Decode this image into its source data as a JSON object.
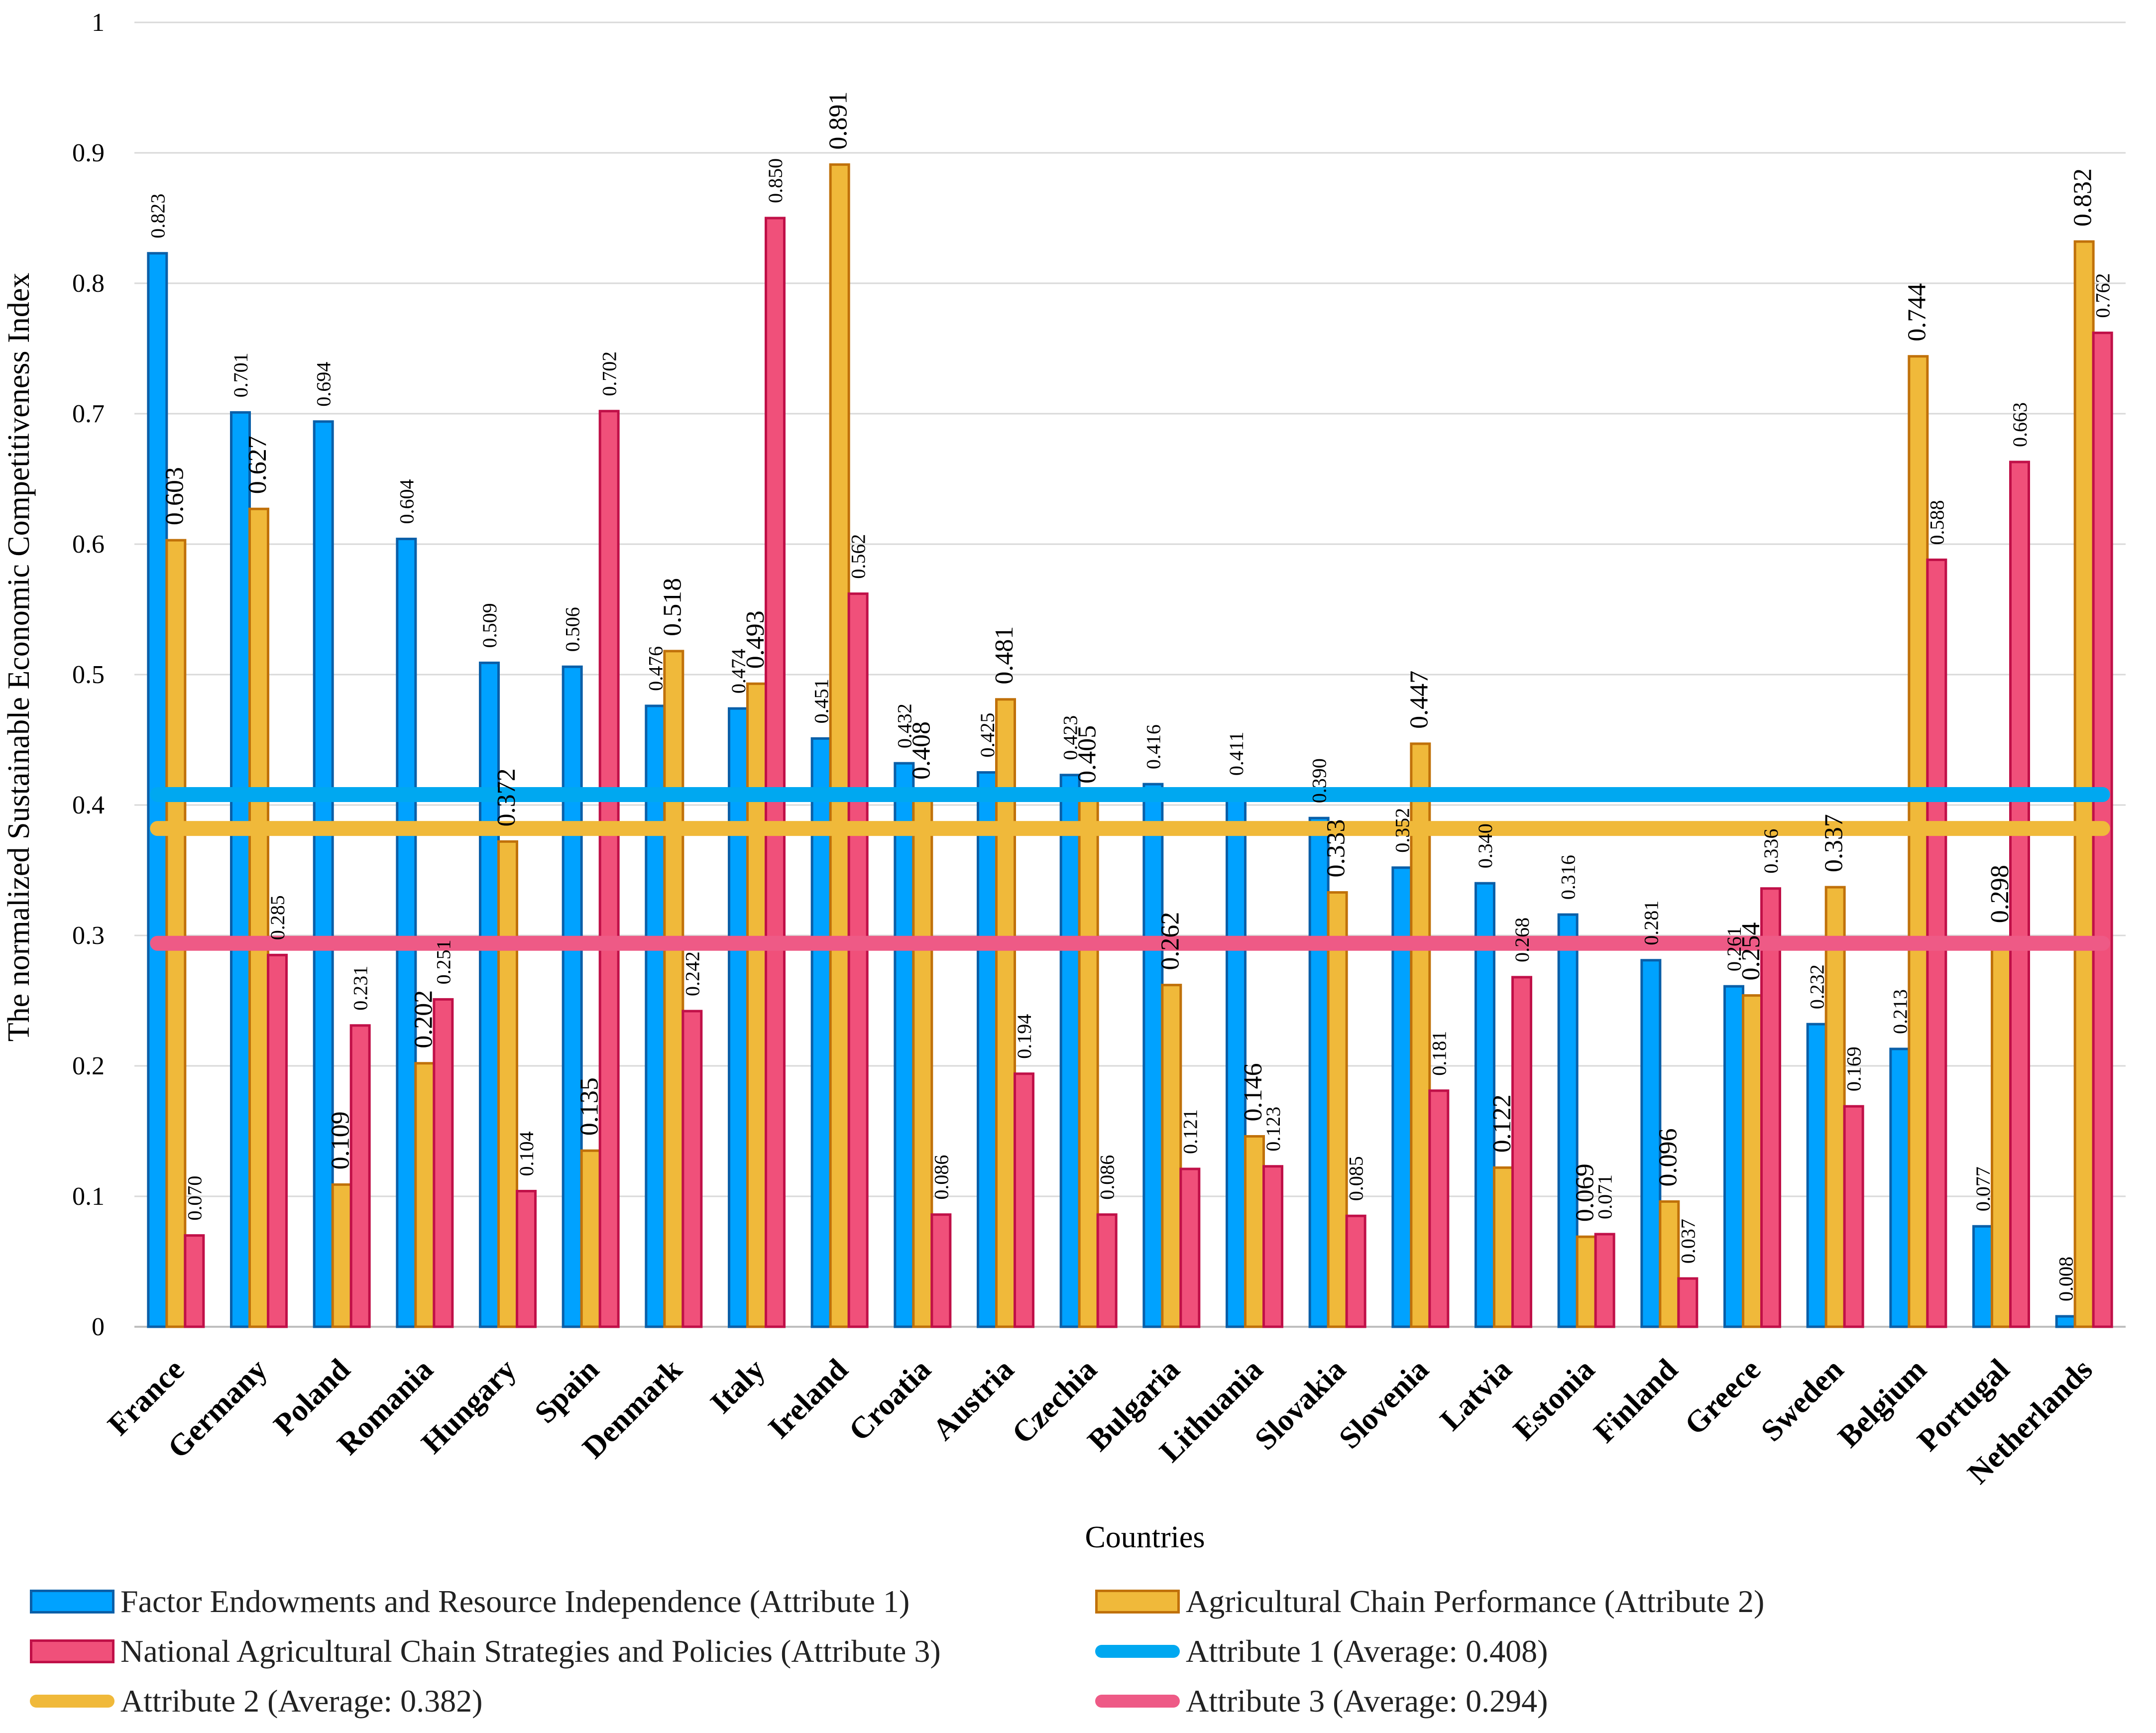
{
  "chart_data": {
    "type": "bar",
    "title": "",
    "xlabel": "Countries",
    "ylabel": "The normalized Sustainable Economic Competitiveness Index",
    "ylim": [
      0,
      1
    ],
    "yticks": [
      "0",
      "0.1",
      "0.2",
      "0.3",
      "0.4",
      "0.5",
      "0.6",
      "0.7",
      "0.8",
      "0.9",
      "1"
    ],
    "categories": [
      "France",
      "Germany",
      "Poland",
      "Romania",
      "Hungary",
      "Spain",
      "Denmark",
      "Italy",
      "Ireland",
      "Croatia",
      "Austria",
      "Czechia",
      "Bulgaria",
      "Lithuania",
      "Slovakia",
      "Slovenia",
      "Latvia",
      "Estonia",
      "Finland",
      "Greece",
      "Sweden",
      "Belgium",
      "Portugal",
      "Netherlands"
    ],
    "series": [
      {
        "name": "Factor Endowments and Resource Independence (Attribute 1)",
        "fill": "#00a2ff",
        "stroke": "#0a5fa8",
        "values": [
          0.823,
          0.701,
          0.694,
          0.604,
          0.509,
          0.506,
          0.476,
          0.474,
          0.451,
          0.432,
          0.425,
          0.423,
          0.416,
          0.411,
          0.39,
          0.352,
          0.34,
          0.316,
          0.281,
          0.261,
          0.232,
          0.213,
          0.077,
          0.008
        ],
        "labels": [
          "0.823",
          "0.701",
          "0.694",
          "0.604",
          "0.509",
          "0.506",
          "0.476",
          "0.474",
          "0.451",
          "0.432",
          "0.425",
          "0.423",
          "0.416",
          "0.411",
          "0.390",
          "0.352",
          "0.340",
          "0.316",
          "0.281",
          "0.261",
          "0.232",
          "0.213",
          "0.077",
          "0.008"
        ]
      },
      {
        "name": "Agricultural Chain Performance (Attribute 2)",
        "fill": "#f0b93a",
        "stroke": "#c0710a",
        "values": [
          0.603,
          0.627,
          0.109,
          0.202,
          0.372,
          0.135,
          0.518,
          0.493,
          0.891,
          0.408,
          0.481,
          0.405,
          0.262,
          0.146,
          0.333,
          0.447,
          0.122,
          0.069,
          0.096,
          0.254,
          0.337,
          0.744,
          0.298,
          0.832
        ],
        "labels": [
          "0.603",
          "0.627",
          "0.109",
          "0.202",
          "0.372",
          "0.135",
          "0.518",
          "0.493",
          "0.891",
          "0.408",
          "0.481",
          "0.405",
          "0.262",
          "0.146",
          "0.333",
          "0.447",
          "0.122",
          "0.069",
          "0.096",
          "0.254",
          "0.337",
          "0.744",
          "0.298",
          "0.832"
        ]
      },
      {
        "name": "National Agricultural Chain Strategies and Policies (Attribute 3)",
        "fill": "#f0507a",
        "stroke": "#c01048",
        "values": [
          0.07,
          0.285,
          0.231,
          0.251,
          0.104,
          0.702,
          0.242,
          0.85,
          0.562,
          0.086,
          0.194,
          0.086,
          0.121,
          0.123,
          0.085,
          0.181,
          0.268,
          0.071,
          0.037,
          0.336,
          0.169,
          0.588,
          0.663,
          0.762
        ],
        "labels": [
          "0.070",
          "0.285",
          "0.231",
          "0.251",
          "0.104",
          "0.702",
          "0.242",
          "0.850",
          "0.562",
          "0.086",
          "0.194",
          "0.086",
          "0.121",
          "0.123",
          "0.085",
          "0.181",
          "0.268",
          "0.071",
          "0.037",
          "0.336",
          "0.169",
          "0.588",
          "0.663",
          "0.762"
        ]
      }
    ],
    "averages": [
      {
        "name": "Attribute 1 (Average: 0.408)",
        "value": 0.408,
        "color": "#00a8f0"
      },
      {
        "name": "Attribute 2 (Average: 0.382)",
        "value": 0.382,
        "color": "#f0b93a"
      },
      {
        "name": "Attribute 3 (Average: 0.294)",
        "value": 0.294,
        "color": "#ee5a86"
      }
    ]
  }
}
